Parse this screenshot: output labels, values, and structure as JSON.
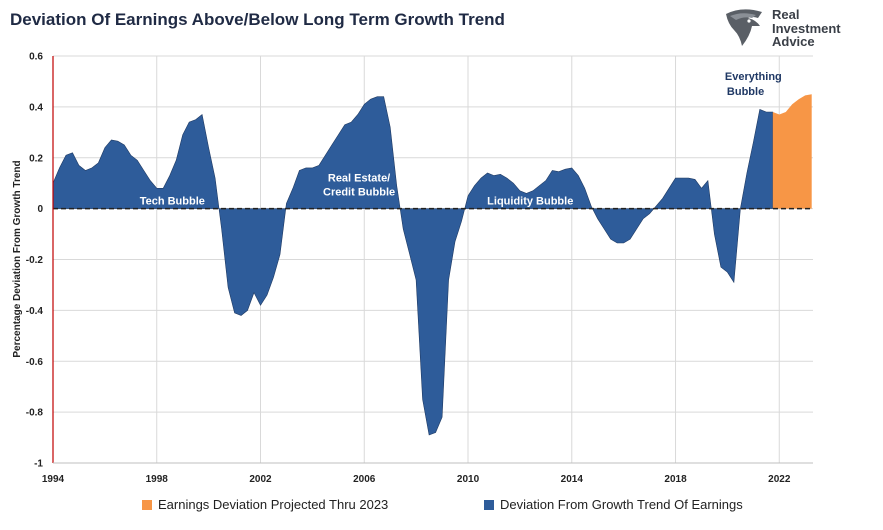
{
  "chart_data": {
    "type": "area",
    "title": "Deviation Of Earnings Above/Below Long Term Growth Trend",
    "ylabel": "Percentage Deviation From Growth Trend",
    "xlabel": "",
    "ylim": [
      -1,
      0.6
    ],
    "xlim": [
      1994,
      2023.3
    ],
    "x_ticks": [
      "1994",
      "1998",
      "2002",
      "2006",
      "2010",
      "2014",
      "2018",
      "2022"
    ],
    "y_ticks": [
      "0.6",
      "0.4",
      "0.2",
      "0",
      "-0.2",
      "-0.4",
      "-0.6",
      "-0.8",
      "-1"
    ],
    "legend_position": "bottom",
    "grid": true,
    "series": [
      {
        "name": "Deviation From Growth Trend Of Earnings",
        "color": "#2e5c9a",
        "points": [
          [
            1994.0,
            0.1
          ],
          [
            1994.25,
            0.16
          ],
          [
            1994.5,
            0.21
          ],
          [
            1994.75,
            0.22
          ],
          [
            1995.0,
            0.17
          ],
          [
            1995.25,
            0.15
          ],
          [
            1995.5,
            0.16
          ],
          [
            1995.75,
            0.18
          ],
          [
            1996.0,
            0.24
          ],
          [
            1996.25,
            0.27
          ],
          [
            1996.5,
            0.265
          ],
          [
            1996.75,
            0.25
          ],
          [
            1997.0,
            0.21
          ],
          [
            1997.25,
            0.19
          ],
          [
            1997.5,
            0.15
          ],
          [
            1997.75,
            0.11
          ],
          [
            1998.0,
            0.08
          ],
          [
            1998.25,
            0.08
          ],
          [
            1998.5,
            0.13
          ],
          [
            1998.75,
            0.19
          ],
          [
            1999.0,
            0.29
          ],
          [
            1999.25,
            0.34
          ],
          [
            1999.5,
            0.35
          ],
          [
            1999.75,
            0.37
          ],
          [
            2000.0,
            0.24
          ],
          [
            2000.25,
            0.12
          ],
          [
            2000.5,
            -0.08
          ],
          [
            2000.75,
            -0.31
          ],
          [
            2001.0,
            -0.41
          ],
          [
            2001.25,
            -0.42
          ],
          [
            2001.5,
            -0.4
          ],
          [
            2001.75,
            -0.33
          ],
          [
            2002.0,
            -0.38
          ],
          [
            2002.25,
            -0.34
          ],
          [
            2002.5,
            -0.27
          ],
          [
            2002.75,
            -0.18
          ],
          [
            2003.0,
            0.02
          ],
          [
            2003.25,
            0.08
          ],
          [
            2003.5,
            0.15
          ],
          [
            2003.75,
            0.16
          ],
          [
            2004.0,
            0.16
          ],
          [
            2004.25,
            0.17
          ],
          [
            2004.5,
            0.21
          ],
          [
            2004.75,
            0.25
          ],
          [
            2005.0,
            0.29
          ],
          [
            2005.25,
            0.33
          ],
          [
            2005.5,
            0.34
          ],
          [
            2005.75,
            0.37
          ],
          [
            2006.0,
            0.41
          ],
          [
            2006.25,
            0.43
          ],
          [
            2006.5,
            0.44
          ],
          [
            2006.75,
            0.44
          ],
          [
            2007.0,
            0.32
          ],
          [
            2007.25,
            0.09
          ],
          [
            2007.5,
            -0.08
          ],
          [
            2007.75,
            -0.18
          ],
          [
            2008.0,
            -0.28
          ],
          [
            2008.25,
            -0.75
          ],
          [
            2008.5,
            -0.89
          ],
          [
            2008.75,
            -0.88
          ],
          [
            2009.0,
            -0.82
          ],
          [
            2009.25,
            -0.28
          ],
          [
            2009.5,
            -0.13
          ],
          [
            2009.75,
            -0.05
          ],
          [
            2010.0,
            0.05
          ],
          [
            2010.25,
            0.09
          ],
          [
            2010.5,
            0.12
          ],
          [
            2010.75,
            0.14
          ],
          [
            2011.0,
            0.13
          ],
          [
            2011.25,
            0.135
          ],
          [
            2011.5,
            0.12
          ],
          [
            2011.75,
            0.1
          ],
          [
            2012.0,
            0.07
          ],
          [
            2012.25,
            0.06
          ],
          [
            2012.5,
            0.07
          ],
          [
            2012.75,
            0.09
          ],
          [
            2013.0,
            0.11
          ],
          [
            2013.25,
            0.15
          ],
          [
            2013.5,
            0.145
          ],
          [
            2013.75,
            0.155
          ],
          [
            2014.0,
            0.16
          ],
          [
            2014.25,
            0.13
          ],
          [
            2014.5,
            0.08
          ],
          [
            2014.75,
            0.01
          ],
          [
            2015.0,
            -0.04
          ],
          [
            2015.25,
            -0.08
          ],
          [
            2015.5,
            -0.12
          ],
          [
            2015.75,
            -0.135
          ],
          [
            2016.0,
            -0.135
          ],
          [
            2016.25,
            -0.12
          ],
          [
            2016.5,
            -0.08
          ],
          [
            2016.75,
            -0.04
          ],
          [
            2017.0,
            -0.02
          ],
          [
            2017.25,
            0.01
          ],
          [
            2017.5,
            0.04
          ],
          [
            2017.75,
            0.08
          ],
          [
            2018.0,
            0.12
          ],
          [
            2018.25,
            0.12
          ],
          [
            2018.5,
            0.12
          ],
          [
            2018.75,
            0.115
          ],
          [
            2019.0,
            0.08
          ],
          [
            2019.25,
            0.11
          ],
          [
            2019.5,
            -0.1
          ],
          [
            2019.75,
            -0.23
          ],
          [
            2020.0,
            -0.25
          ],
          [
            2020.25,
            -0.29
          ],
          [
            2020.5,
            0.0
          ],
          [
            2020.75,
            0.14
          ],
          [
            2021.0,
            0.26
          ],
          [
            2021.25,
            0.39
          ],
          [
            2021.5,
            0.38
          ],
          [
            2021.75,
            0.38
          ]
        ]
      },
      {
        "name": "Earnings Deviation Projected Thru 2023",
        "color": "#f79646",
        "points": [
          [
            2021.75,
            0.38
          ],
          [
            2022.0,
            0.37
          ],
          [
            2022.25,
            0.38
          ],
          [
            2022.5,
            0.41
          ],
          [
            2022.75,
            0.43
          ],
          [
            2023.0,
            0.445
          ],
          [
            2023.25,
            0.45
          ]
        ]
      }
    ],
    "annotations": [
      {
        "text": "Tech Bubble",
        "x": 1998.6,
        "y": 0.0,
        "style": "white"
      },
      {
        "text": "Real Estate/",
        "x": 2005.8,
        "y": 0.09,
        "style": "white"
      },
      {
        "text": "Credit Bubble",
        "x": 2005.8,
        "y": 0.035,
        "style": "white"
      },
      {
        "text": "Liquidity Bubble",
        "x": 2012.4,
        "y": 0.0,
        "style": "white"
      },
      {
        "text": "Everything",
        "x": 2021.0,
        "y": 0.49,
        "style": "dark"
      },
      {
        "text": "Bubble",
        "x": 2020.7,
        "y": 0.43,
        "style": "dark"
      }
    ]
  },
  "logo": {
    "line1": "Real",
    "line2": "Investment",
    "line3": "Advice",
    "icon": "eagle-head-icon"
  },
  "legend": {
    "projected_label": "Earnings Deviation Projected Thru 2023",
    "actual_label": "Deviation From Growth Trend Of Earnings",
    "projected_color": "#f79646",
    "actual_color": "#2e5c9a"
  }
}
